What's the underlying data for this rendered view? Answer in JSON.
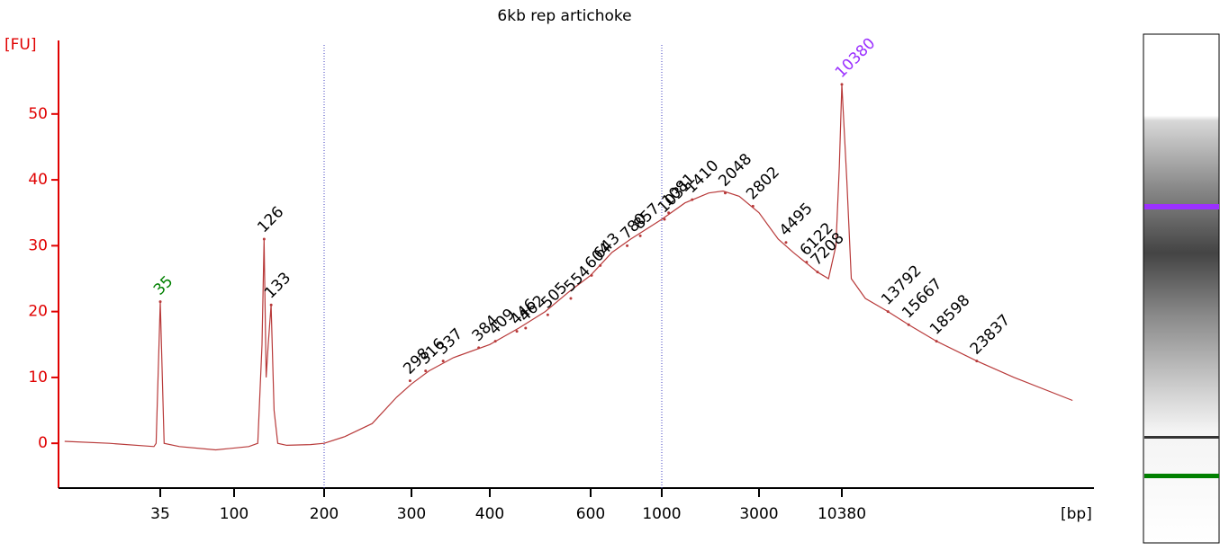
{
  "chart_data": {
    "type": "line",
    "title": "6kb rep artichoke",
    "y_label": "[FU]",
    "x_label": "[bp]",
    "ylim": [
      -6.8,
      59.8
    ],
    "yticks": [
      0,
      10,
      20,
      30,
      40,
      50
    ],
    "xticks": [
      35,
      100,
      200,
      300,
      400,
      600,
      1000,
      3000,
      10380
    ],
    "color": "#b83a3a",
    "axis_color": "#e00000",
    "x": [
      9,
      17,
      32,
      33,
      35,
      37,
      46,
      77,
      112,
      120,
      124,
      126,
      128,
      130,
      133,
      136,
      140,
      150,
      180,
      200,
      220,
      250,
      280,
      300,
      320,
      350,
      400,
      450,
      500,
      550,
      600,
      700,
      800,
      1000,
      1300,
      1700,
      2000,
      2400,
      3000,
      4000,
      5000,
      6000,
      7200,
      8500,
      9500,
      10000,
      10380,
      10700,
      11000,
      12000,
      13792,
      15667,
      18598,
      23837,
      30000,
      43000
    ],
    "values": [
      0.3,
      0,
      -0.5,
      0,
      21.5,
      0,
      -0.5,
      -1,
      -0.5,
      0,
      15,
      31,
      10,
      15,
      21,
      5,
      0,
      -0.3,
      -0.2,
      0,
      1,
      3,
      7,
      9,
      11,
      13,
      15,
      17.5,
      20,
      23,
      25.5,
      29,
      31,
      34,
      36.5,
      38,
      38.3,
      37.5,
      35,
      31,
      29,
      27.5,
      26,
      25,
      30,
      42,
      54.5,
      40,
      25,
      22,
      20,
      18,
      15.5,
      12.5,
      10,
      6.5
    ],
    "peaks": [
      {
        "size": 35,
        "fu": 21.5,
        "color": "#008000"
      },
      {
        "size": 126,
        "fu": 31,
        "color": "#000000"
      },
      {
        "size": 133,
        "fu": 21,
        "color": "#000000"
      },
      {
        "size": 298,
        "fu": 9.5,
        "color": "#000000"
      },
      {
        "size": 316,
        "fu": 11,
        "color": "#000000"
      },
      {
        "size": 337,
        "fu": 12.5,
        "color": "#000000"
      },
      {
        "size": 384,
        "fu": 14.5,
        "color": "#000000"
      },
      {
        "size": 409,
        "fu": 15.5,
        "color": "#000000"
      },
      {
        "size": 446,
        "fu": 17,
        "color": "#000000"
      },
      {
        "size": 462,
        "fu": 17.5,
        "color": "#000000"
      },
      {
        "size": 505,
        "fu": 19.5,
        "color": "#000000"
      },
      {
        "size": 554,
        "fu": 22,
        "color": "#000000"
      },
      {
        "size": 604,
        "fu": 25.5,
        "color": "#000000"
      },
      {
        "size": 643,
        "fu": 27,
        "color": "#000000"
      },
      {
        "size": 780,
        "fu": 30,
        "color": "#000000"
      },
      {
        "size": 857,
        "fu": 31.5,
        "color": "#000000"
      },
      {
        "size": 1031,
        "fu": 34,
        "color": "#000000"
      },
      {
        "size": 1081,
        "fu": 35,
        "color": "#000000"
      },
      {
        "size": 1410,
        "fu": 37,
        "color": "#000000"
      },
      {
        "size": 2048,
        "fu": 38,
        "color": "#000000"
      },
      {
        "size": 2802,
        "fu": 36,
        "color": "#000000"
      },
      {
        "size": 4495,
        "fu": 30.5,
        "color": "#000000"
      },
      {
        "size": 6122,
        "fu": 27.5,
        "color": "#000000"
      },
      {
        "size": 7208,
        "fu": 26,
        "color": "#000000"
      },
      {
        "size": 10380,
        "fu": 54.5,
        "color": "#9b30ff"
      },
      {
        "size": 13792,
        "fu": 20,
        "color": "#000000"
      },
      {
        "size": 15667,
        "fu": 18,
        "color": "#000000"
      },
      {
        "size": 18598,
        "fu": 15.5,
        "color": "#000000"
      },
      {
        "size": 23837,
        "fu": 12.5,
        "color": "#000000"
      }
    ]
  }
}
